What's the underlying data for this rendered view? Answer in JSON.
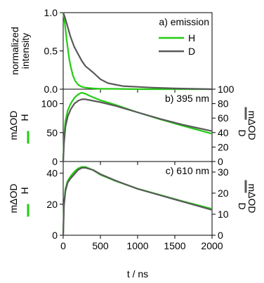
{
  "figure": {
    "xlabel": "t / ns",
    "x_ticks": [
      "0",
      "500",
      "1000",
      "1500",
      "2000"
    ],
    "colors": {
      "H": "#22cc11",
      "D": "#595959",
      "axis": "#000000"
    }
  },
  "chart_data": [
    {
      "id": "a",
      "type": "line",
      "annotation": "a) emission",
      "ylabel": "normalized intensity",
      "ylabel_lines": [
        "normalized",
        "intensity"
      ],
      "y_ticks": [
        "0.0",
        "0.5",
        "1.0"
      ],
      "ylim": [
        0,
        1.0
      ],
      "xlim": [
        0,
        2000
      ],
      "legend": {
        "placement": "top-right",
        "entries": [
          "H",
          "D"
        ]
      },
      "series": [
        {
          "name": "H",
          "color": "#22cc11",
          "x": [
            0,
            20,
            50,
            80,
            100,
            130,
            160,
            200,
            250,
            300,
            400,
            500,
            700,
            1000,
            1500,
            2000
          ],
          "y": [
            1.0,
            0.88,
            0.62,
            0.4,
            0.3,
            0.18,
            0.11,
            0.06,
            0.03,
            0.02,
            0.01,
            0.005,
            0.005,
            0.0,
            0.0,
            0.0
          ]
        },
        {
          "name": "D",
          "color": "#595959",
          "x": [
            0,
            20,
            50,
            100,
            150,
            200,
            250,
            300,
            400,
            500,
            600,
            700,
            800,
            1000,
            1200,
            1500,
            2000
          ],
          "y": [
            1.0,
            0.95,
            0.85,
            0.68,
            0.55,
            0.46,
            0.37,
            0.3,
            0.22,
            0.13,
            0.08,
            0.06,
            0.04,
            0.03,
            0.02,
            0.01,
            0.0
          ]
        }
      ]
    },
    {
      "id": "b",
      "type": "line",
      "annotation": "b) 395 nm",
      "ylabel_left": "mΔOD",
      "ylabel_left_sub": "H",
      "ylabel_right": "mΔOD",
      "ylabel_right_sub": "D",
      "y_ticks_left": [
        "0",
        "50",
        "100"
      ],
      "y_ticks_right": [
        "0",
        "20",
        "40",
        "60",
        "80",
        "100"
      ],
      "ylim_left": [
        0,
        125
      ],
      "ylim_right": [
        0,
        100
      ],
      "xlim": [
        0,
        2000
      ],
      "series": [
        {
          "name": "H",
          "color": "#22cc11",
          "axis": "left",
          "x": [
            0,
            10,
            30,
            60,
            100,
            150,
            200,
            250,
            300,
            350,
            400,
            500,
            700,
            1000,
            1300,
            1600,
            2000
          ],
          "y": [
            0,
            40,
            70,
            88,
            100,
            110,
            116,
            119,
            117,
            114,
            111,
            106,
            98,
            85,
            73,
            62,
            48
          ]
        },
        {
          "name": "D",
          "color": "#595959",
          "axis": "right",
          "x": [
            0,
            10,
            30,
            60,
            100,
            150,
            200,
            250,
            300,
            400,
            500,
            700,
            1000,
            1300,
            1600,
            2000
          ],
          "y": [
            0,
            25,
            48,
            62,
            72,
            80,
            84,
            86,
            86,
            84,
            82,
            77,
            68,
            59,
            51,
            42
          ]
        }
      ]
    },
    {
      "id": "c",
      "type": "line",
      "annotation": "c) 610 nm",
      "ylabel_left": "mΔOD",
      "ylabel_left_sub": "H",
      "ylabel_right": "mΔOD",
      "ylabel_right_sub": "D",
      "y_ticks_left": [
        "0",
        "20",
        "40"
      ],
      "y_ticks_right": [
        "0",
        "10",
        "20",
        "30"
      ],
      "ylim_left": [
        0,
        47.5
      ],
      "ylim_right": [
        0,
        35
      ],
      "xlim": [
        0,
        2000
      ],
      "series": [
        {
          "name": "H",
          "color": "#22cc11",
          "axis": "left",
          "x": [
            0,
            10,
            30,
            60,
            100,
            150,
            200,
            250,
            300,
            400,
            500,
            700,
            1000,
            1300,
            1600,
            2000
          ],
          "y": [
            0,
            20,
            30,
            35,
            38,
            41,
            43,
            44,
            44,
            42,
            39,
            35,
            30,
            26,
            22,
            17
          ]
        },
        {
          "name": "D",
          "color": "#595959",
          "axis": "right",
          "x": [
            0,
            10,
            30,
            60,
            100,
            150,
            200,
            250,
            300,
            400,
            500,
            700,
            1000,
            1300,
            1600,
            2000
          ],
          "y": [
            0,
            14,
            21,
            25,
            27,
            29,
            31,
            32,
            32,
            31,
            29,
            26,
            22,
            19,
            16,
            12
          ]
        }
      ]
    }
  ]
}
